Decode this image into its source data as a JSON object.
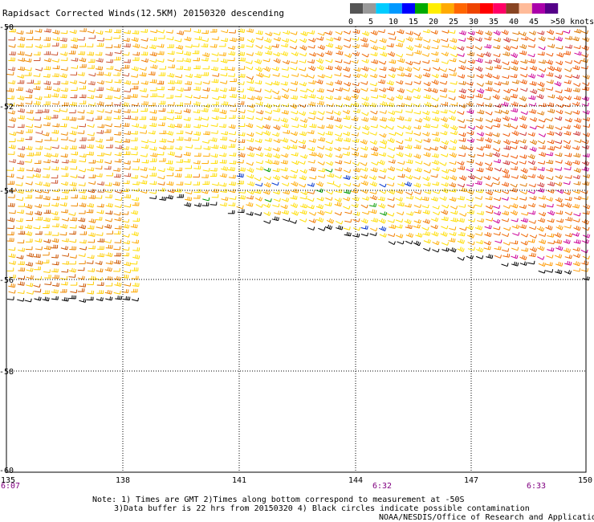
{
  "title": "Rapidsact Corrected Winds(12.5KM) 20150320 descending",
  "legend": {
    "colors": [
      "#555555",
      "#999999",
      "#00ccff",
      "#0099ff",
      "#0000ff",
      "#00aa00",
      "#ffee00",
      "#ffaa00",
      "#ff6600",
      "#ee4400",
      "#ff0000",
      "#ff0066",
      "#884422",
      "#ffbb99",
      "#aa00aa",
      "#550088"
    ],
    "labels": [
      "0",
      "5",
      "10",
      "15",
      "20",
      "25",
      "30",
      "35",
      "40",
      "45",
      ">50 knots"
    ]
  },
  "axes": {
    "lat_labels": [
      "-50",
      "-52",
      "-54",
      "-56",
      "-58",
      "-60"
    ],
    "lon_labels": [
      "135",
      "138",
      "141",
      "144",
      "147",
      "150"
    ],
    "lat_range": [
      -60,
      -50
    ],
    "lon_range": [
      135,
      150
    ]
  },
  "times": [
    "6:07",
    "6:32",
    "6:33"
  ],
  "notes": [
    "Note: 1) Times are GMT 2)Times along bottom correspond to measurement at -50S",
    "3)Data buffer is 22 hrs from 20150320 4) Black circles indicate possible contamination",
    "NOAA/NESDIS/Office of Research and Applications"
  ]
}
